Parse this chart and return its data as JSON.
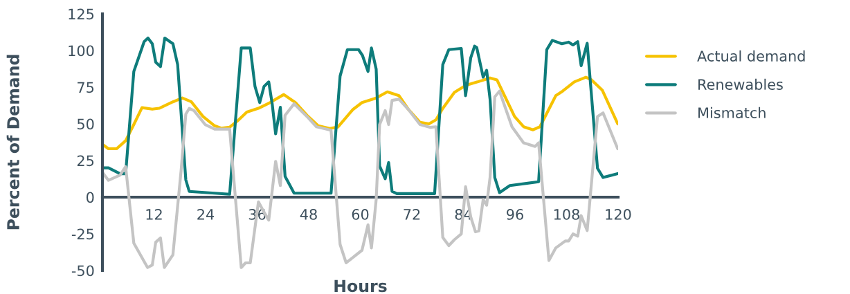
{
  "chart_data": {
    "type": "line",
    "xlabel": "Hours",
    "ylabel": "Percent of Demand",
    "xlim": [
      0,
      120
    ],
    "xticks": [
      12,
      24,
      36,
      48,
      60,
      72,
      84,
      96,
      108,
      120
    ],
    "ylim": [
      -50,
      125
    ],
    "yticks": [
      -50,
      -25,
      0,
      25,
      50,
      75,
      100,
      125
    ],
    "grid": false,
    "legend": "right",
    "marker": "none",
    "line_style": "solid",
    "series": [
      {
        "name": "Actual demand",
        "color": "#f6c200",
        "x": [
          0,
          1.4,
          3.3,
          5.4,
          7.3,
          9.2,
          11.6,
          13.2,
          16.4,
          18.6,
          20.7,
          23.4,
          26.1,
          27.7,
          29.6,
          31.4,
          33.6,
          36.3,
          39,
          42.2,
          44.9,
          47.6,
          50.2,
          52.9,
          54.8,
          58.3,
          60.4,
          63.7,
          66.3,
          69,
          71.2,
          73.9,
          76,
          77.6,
          79.2,
          81.9,
          84.6,
          87.3,
          90.2,
          91.8,
          93.7,
          95.9,
          98,
          100.2,
          101.8,
          105.5,
          107.1,
          109.8,
          112.5,
          113.8,
          116.3,
          119.9
        ],
        "values": [
          36,
          33,
          33,
          38.5,
          49.5,
          61,
          60,
          60.6,
          65,
          67.6,
          65,
          55,
          48.7,
          47,
          47.7,
          51.9,
          58,
          60.6,
          64.5,
          70,
          64.5,
          55.8,
          48.7,
          46.8,
          47.8,
          59.8,
          64.5,
          67.6,
          71.8,
          69.2,
          59.8,
          51,
          50,
          52.7,
          60.5,
          71.5,
          76.3,
          78.6,
          81.3,
          80,
          68.4,
          55,
          48,
          45.9,
          48,
          69.2,
          72.3,
          78.6,
          81.8,
          80,
          73,
          50
        ]
      },
      {
        "name": "Renewables",
        "color": "#0e7c7b",
        "x": [
          0,
          1.4,
          4.1,
          5.4,
          7.3,
          9.7,
          10.6,
          11.6,
          12.4,
          13.5,
          14.5,
          16.4,
          17.5,
          19.4,
          20.2,
          29.6,
          32.3,
          34.4,
          35.5,
          36.6,
          37.6,
          38.7,
          39.5,
          40.3,
          41.4,
          42.5,
          44.6,
          53.2,
          55.3,
          57,
          59.6,
          60.5,
          61.8,
          62.6,
          63.7,
          64.5,
          65.8,
          66.6,
          67.4,
          68.5,
          77.3,
          79.2,
          80.6,
          83.5,
          84.5,
          85.7,
          86.6,
          87.1,
          88.6,
          89.4,
          90.2,
          91.3,
          92.4,
          94.8,
          101.5,
          103.4,
          104.7,
          106.9,
          108.5,
          109.5,
          110.6,
          111.4,
          112.8,
          115.2,
          116.5,
          119.9
        ],
        "values": [
          20,
          20,
          16,
          16,
          85.7,
          106,
          108.5,
          104.6,
          92,
          89,
          108.5,
          104.6,
          90.4,
          11.8,
          3.9,
          2,
          101.7,
          101.7,
          75.5,
          64.5,
          75.5,
          78.6,
          63.7,
          43.2,
          61.3,
          14.2,
          2.7,
          2.7,
          82.5,
          100.6,
          100.6,
          96.7,
          85.7,
          101.7,
          87.3,
          21.2,
          12.6,
          23.6,
          3.9,
          2.4,
          2.4,
          90.4,
          100.6,
          101.4,
          69.2,
          95,
          103,
          102,
          81.8,
          86.5,
          66.8,
          13.4,
          3.1,
          7.9,
          10.5,
          100.6,
          106.9,
          104.6,
          105.7,
          103.8,
          106,
          89.6,
          104.9,
          19.7,
          13.4,
          16
        ]
      },
      {
        "name": "Mismatch",
        "color": "#c4c4c4",
        "x": [
          0,
          1.4,
          4.1,
          5.4,
          7.3,
          10.5,
          11.6,
          12.4,
          13.5,
          14.4,
          16.4,
          18.3,
          19.4,
          20.2,
          21.3,
          23.9,
          26.1,
          29.6,
          32.3,
          33.3,
          34.4,
          36.3,
          37.6,
          38.7,
          40.3,
          41.4,
          42.5,
          44.6,
          47.6,
          49.8,
          53.2,
          55.3,
          56.7,
          60.4,
          61.8,
          62.6,
          63.7,
          64.5,
          65.8,
          66.6,
          67.4,
          69,
          71.2,
          73.9,
          76.2,
          77.6,
          79.2,
          80.6,
          81.9,
          83.5,
          84.5,
          85.7,
          86.8,
          87.6,
          88.6,
          89.4,
          90.2,
          91.3,
          92.4,
          95.3,
          98,
          100.7,
          101.5,
          103.9,
          105.5,
          107.7,
          108.5,
          109.5,
          110.6,
          111.4,
          112.8,
          115.2,
          116.5,
          119.9
        ],
        "values": [
          16.8,
          11.5,
          15,
          20.8,
          -31.4,
          -48,
          -46.3,
          -30.7,
          -27.8,
          -48,
          -39.3,
          18,
          56.6,
          60.5,
          59,
          49.5,
          46.4,
          46.4,
          -48,
          -44.8,
          -44.8,
          -3.2,
          -10.2,
          -15.7,
          24.4,
          7.9,
          55.8,
          63.7,
          55,
          48,
          45.6,
          -32.2,
          -44.8,
          -36.2,
          -18.9,
          -34.6,
          -1.6,
          49.5,
          59,
          49.5,
          66,
          66.8,
          59.8,
          49.5,
          47.6,
          48,
          -27.5,
          -33,
          -29,
          -25.1,
          7.1,
          -13.4,
          -23.6,
          -23,
          -1.6,
          -5.5,
          13.4,
          68.4,
          72.3,
          48,
          37,
          34.6,
          37,
          -43.2,
          -34.6,
          -29.9,
          -29.9,
          -25.1,
          -26.6,
          -12.6,
          -22.8,
          55,
          57.4,
          33
        ]
      }
    ]
  }
}
